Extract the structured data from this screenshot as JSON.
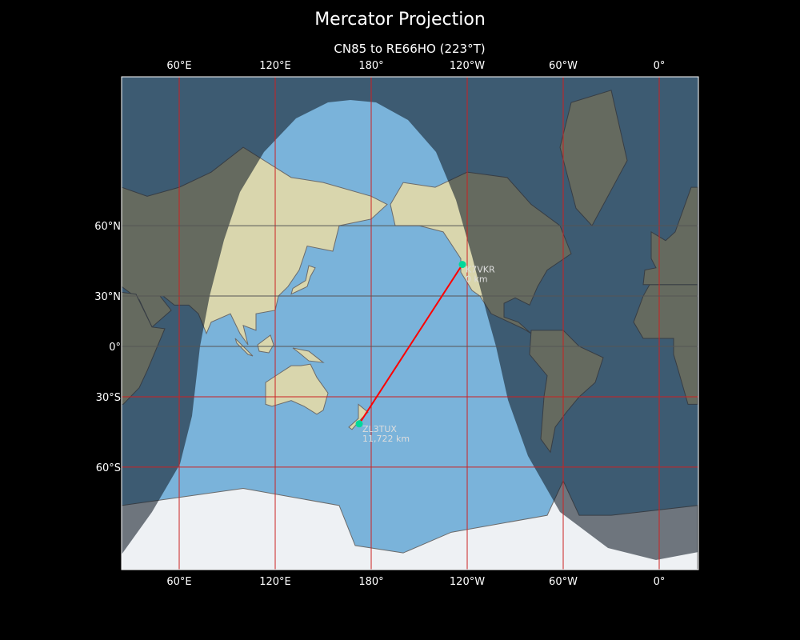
{
  "title": "Mercator Projection",
  "subtitle": "CN85 to RE66HO (223°T)",
  "map": {
    "projection": "Mercator",
    "lon_ticks": [
      {
        "lon": 60,
        "label": "60°E"
      },
      {
        "lon": 120,
        "label": "120°E"
      },
      {
        "lon": 180,
        "label": "180°"
      },
      {
        "lon": -120,
        "label": "120°W"
      },
      {
        "lon": -60,
        "label": "60°W"
      },
      {
        "lon": 0,
        "label": "0°"
      }
    ],
    "lat_ticks": [
      {
        "lat": 60,
        "label": "60°N"
      },
      {
        "lat": 30,
        "label": "30°N"
      },
      {
        "lat": 0,
        "label": "0°"
      },
      {
        "lat": -30,
        "label": "30°S"
      },
      {
        "lat": -60,
        "label": "60°S"
      }
    ],
    "extent": {
      "lon_min": 24,
      "lon_max": 384,
      "lat_min": -80,
      "lat_max": 84
    },
    "colors": {
      "path": "#ff0000",
      "station": "#00d89a",
      "grid": "#cc2222",
      "lit_ocean": "#7ab3da",
      "dark_ocean": "#3e566b"
    },
    "stations": [
      {
        "call": "K7VKR",
        "distance": "0 km",
        "lat": 45.5,
        "lon": -123
      },
      {
        "call": "ZL3TUX",
        "distance": "11,722 km",
        "lat": -43.5,
        "lon": 172.5
      }
    ]
  }
}
